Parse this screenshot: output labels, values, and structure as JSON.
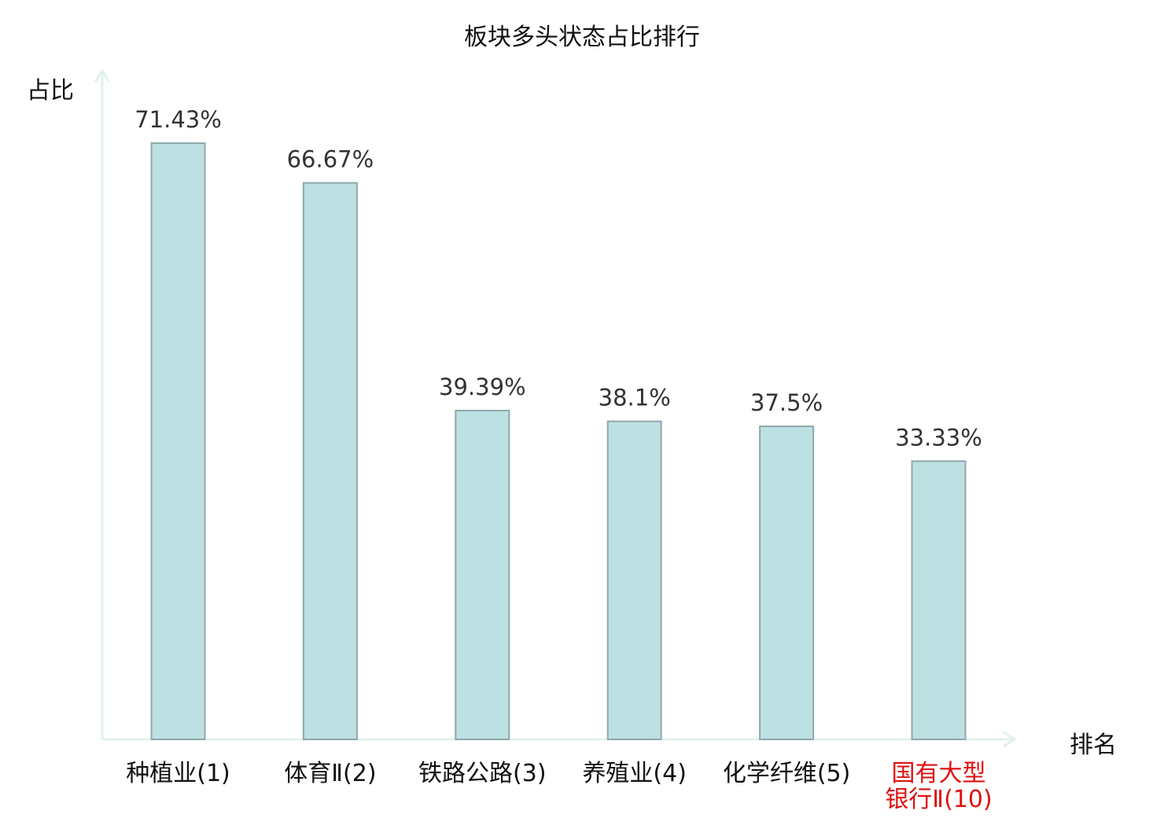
{
  "chart_data": {
    "type": "bar",
    "title": "板块多头状态占比排行",
    "ylabel": "占比",
    "xlabel": "排名",
    "categories": [
      "种植业(1)",
      "体育Ⅱ(2)",
      "铁路公路(3)",
      "养殖业(4)",
      "化学纤维(5)",
      "国有大型\n银行Ⅱ(10)"
    ],
    "values": [
      71.43,
      66.67,
      39.39,
      38.1,
      37.5,
      33.33
    ],
    "data_labels": [
      "71.43%",
      "66.67%",
      "39.39%",
      "38.1%",
      "37.5%",
      "33.33%"
    ],
    "highlight_index": 5,
    "ylim": [
      0,
      80
    ],
    "grid": false,
    "legend": "none"
  },
  "colors": {
    "bar_fill": "#bde0e3",
    "bar_stroke": "#8fa9aa",
    "axis": "#dff1ef",
    "label_text": "#333333",
    "category_text": "#111111",
    "highlight_text": "#e01010"
  }
}
